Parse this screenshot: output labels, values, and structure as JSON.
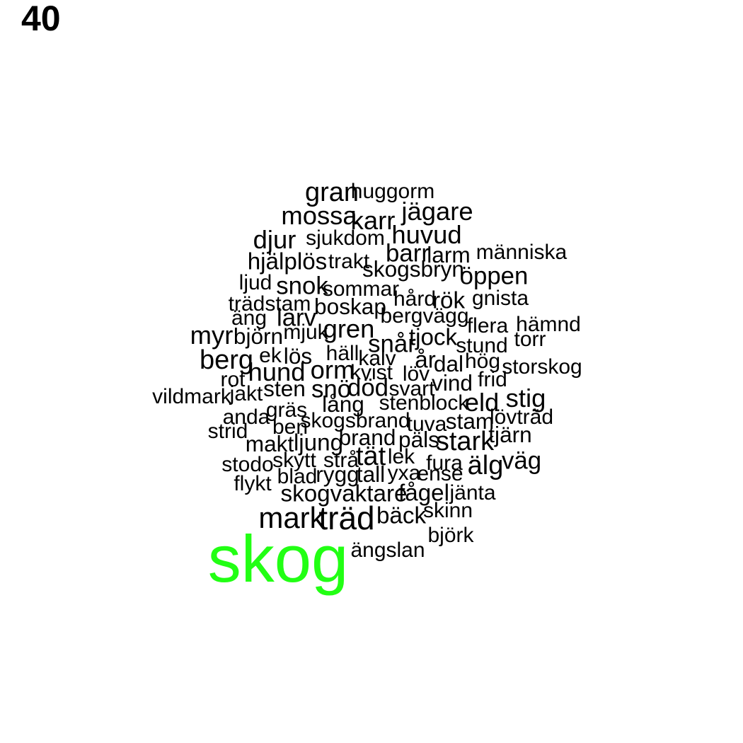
{
  "panel_label": "40",
  "highlight_color": "#22ff14",
  "text_color": "#000000",
  "words": [
    {
      "text": "skog",
      "weight": 1.0,
      "highlight": true
    },
    {
      "text": "träd",
      "weight": 0.4
    },
    {
      "text": "mark",
      "weight": 0.35
    },
    {
      "text": "gran",
      "weight": 0.3
    },
    {
      "text": "berg",
      "weight": 0.3
    },
    {
      "text": "älg",
      "weight": 0.3
    },
    {
      "text": "stark",
      "weight": 0.3
    },
    {
      "text": "tät",
      "weight": 0.3
    },
    {
      "text": "karr",
      "weight": 0.28
    },
    {
      "text": "jägare",
      "weight": 0.28
    },
    {
      "text": "huvud",
      "weight": 0.28
    },
    {
      "text": "djur",
      "weight": 0.28
    },
    {
      "text": "mossa",
      "weight": 0.28
    },
    {
      "text": "gren",
      "weight": 0.28
    },
    {
      "text": "hund",
      "weight": 0.28
    },
    {
      "text": "orm",
      "weight": 0.28
    },
    {
      "text": "stig",
      "weight": 0.28
    },
    {
      "text": "eld",
      "weight": 0.28
    },
    {
      "text": "myr",
      "weight": 0.28
    },
    {
      "text": "snår",
      "weight": 0.26
    },
    {
      "text": "snok",
      "weight": 0.26
    },
    {
      "text": "larv",
      "weight": 0.26
    },
    {
      "text": "barr",
      "weight": 0.26
    },
    {
      "text": "öppen",
      "weight": 0.26
    },
    {
      "text": "väg",
      "weight": 0.26
    },
    {
      "text": "död",
      "weight": 0.26
    },
    {
      "text": "snö",
      "weight": 0.26
    },
    {
      "text": "år",
      "weight": 0.24
    },
    {
      "text": "rök",
      "weight": 0.24
    },
    {
      "text": "tjock",
      "weight": 0.24
    },
    {
      "text": "hjälplös",
      "weight": 0.24
    },
    {
      "text": "skogvaktare",
      "weight": 0.24
    },
    {
      "text": "fågel",
      "weight": 0.24
    },
    {
      "text": "bäck",
      "weight": 0.24
    },
    {
      "text": "ljung",
      "weight": 0.24
    },
    {
      "text": "dal",
      "weight": 0.22
    },
    {
      "text": "vind",
      "weight": 0.22
    },
    {
      "text": "tall",
      "weight": 0.22
    },
    {
      "text": "rygg",
      "weight": 0.22
    },
    {
      "text": "sten",
      "weight": 0.22
    },
    {
      "text": "björn",
      "weight": 0.22
    },
    {
      "text": "lös",
      "weight": 0.22
    },
    {
      "text": "makt",
      "weight": 0.22
    },
    {
      "text": "boskap",
      "weight": 0.22
    },
    {
      "text": "skogsbryn",
      "weight": 0.22
    },
    {
      "text": "lång",
      "weight": 0.22
    },
    {
      "text": "fura",
      "weight": 0.2
    },
    {
      "text": "stam",
      "weight": 0.22
    },
    {
      "text": "tjärn",
      "weight": 0.22
    },
    {
      "text": "päls",
      "weight": 0.22
    },
    {
      "text": "brand",
      "weight": 0.22
    },
    {
      "text": "huggorm",
      "weight": 0.2
    },
    {
      "text": "sjukdom",
      "weight": 0.2
    },
    {
      "text": "trakt",
      "weight": 0.2
    },
    {
      "text": "larm",
      "weight": 0.22
    },
    {
      "text": "människa",
      "weight": 0.2
    },
    {
      "text": "ljud",
      "weight": 0.2
    },
    {
      "text": "sommar",
      "weight": 0.2
    },
    {
      "text": "hård",
      "weight": 0.2
    },
    {
      "text": "gnista",
      "weight": 0.2
    },
    {
      "text": "trädstam",
      "weight": 0.2
    },
    {
      "text": "bergvägg",
      "weight": 0.2
    },
    {
      "text": "äng",
      "weight": 0.2
    },
    {
      "text": "flera",
      "weight": 0.2
    },
    {
      "text": "hämnd",
      "weight": 0.2
    },
    {
      "text": "mjuk",
      "weight": 0.2
    },
    {
      "text": "torr",
      "weight": 0.2
    },
    {
      "text": "stund",
      "weight": 0.2
    },
    {
      "text": "häll",
      "weight": 0.2
    },
    {
      "text": "kalv",
      "weight": 0.2
    },
    {
      "text": "ek",
      "weight": 0.2
    },
    {
      "text": "hög",
      "weight": 0.2
    },
    {
      "text": "storskog",
      "weight": 0.2
    },
    {
      "text": "kvist",
      "weight": 0.2
    },
    {
      "text": "löv",
      "weight": 0.2
    },
    {
      "text": "rot",
      "weight": 0.2
    },
    {
      "text": "frid",
      "weight": 0.2
    },
    {
      "text": "jakt",
      "weight": 0.2
    },
    {
      "text": "svart",
      "weight": 0.2
    },
    {
      "text": "vildmark",
      "weight": 0.2
    },
    {
      "text": "stenblock",
      "weight": 0.2
    },
    {
      "text": "gräs",
      "weight": 0.2
    },
    {
      "text": "lövträd",
      "weight": 0.2
    },
    {
      "text": "anda",
      "weight": 0.2
    },
    {
      "text": "skogsbrand",
      "weight": 0.2
    },
    {
      "text": "ben",
      "weight": 0.2
    },
    {
      "text": "tuva",
      "weight": 0.2
    },
    {
      "text": "strid",
      "weight": 0.2
    },
    {
      "text": "lek",
      "weight": 0.2
    },
    {
      "text": "skytt",
      "weight": 0.2
    },
    {
      "text": "strå",
      "weight": 0.2
    },
    {
      "text": "stodo",
      "weight": 0.2
    },
    {
      "text": "yxa",
      "weight": 0.2
    },
    {
      "text": "ense",
      "weight": 0.2
    },
    {
      "text": "blad",
      "weight": 0.2
    },
    {
      "text": "flykt",
      "weight": 0.2
    },
    {
      "text": "jänta",
      "weight": 0.2
    },
    {
      "text": "skinn",
      "weight": 0.2
    },
    {
      "text": "björk",
      "weight": 0.2
    },
    {
      "text": "ängslan",
      "weight": 0.2
    }
  ]
}
